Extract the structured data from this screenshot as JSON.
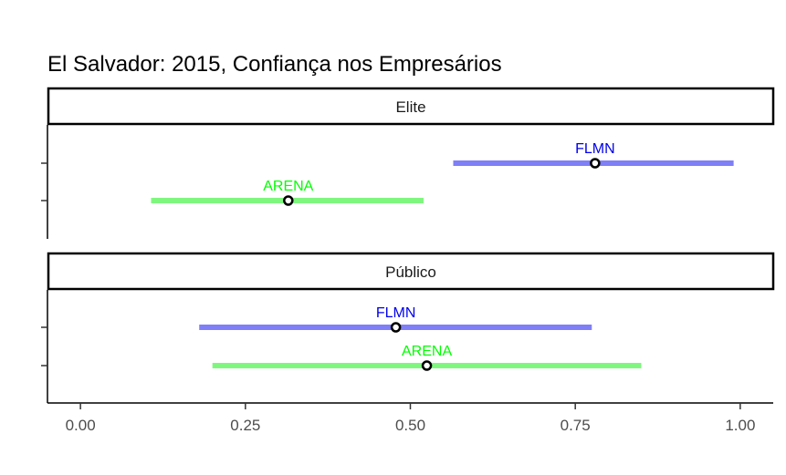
{
  "chart_data": {
    "type": "interval",
    "title": "El Salvador: 2015, Confiança nos Empresários",
    "xlabel": "",
    "ylabel": "",
    "xlim": [
      -0.05,
      1.05
    ],
    "x_ticks": [
      0.0,
      0.25,
      0.5,
      0.75,
      1.0
    ],
    "x_tick_labels": [
      "0.00",
      "0.25",
      "0.50",
      "0.75",
      "1.00"
    ],
    "grid": false,
    "legend": "none",
    "panels": [
      {
        "name": "Elite",
        "series": [
          {
            "label": "FLMN",
            "estimate": 0.78,
            "low": 0.565,
            "high": 0.99,
            "color": "#0000ee",
            "bar_color": "#7f7ff7"
          },
          {
            "label": "ARENA",
            "estimate": 0.315,
            "low": 0.107,
            "high": 0.52,
            "color": "#00ff00",
            "bar_color": "#7ff77f"
          }
        ]
      },
      {
        "name": "Público",
        "series": [
          {
            "label": "FLMN",
            "estimate": 0.478,
            "low": 0.18,
            "high": 0.775,
            "color": "#0000ee",
            "bar_color": "#7f7ff7"
          },
          {
            "label": "ARENA",
            "estimate": 0.525,
            "low": 0.2,
            "high": 0.85,
            "color": "#00ff00",
            "bar_color": "#7ff77f"
          }
        ]
      }
    ]
  }
}
